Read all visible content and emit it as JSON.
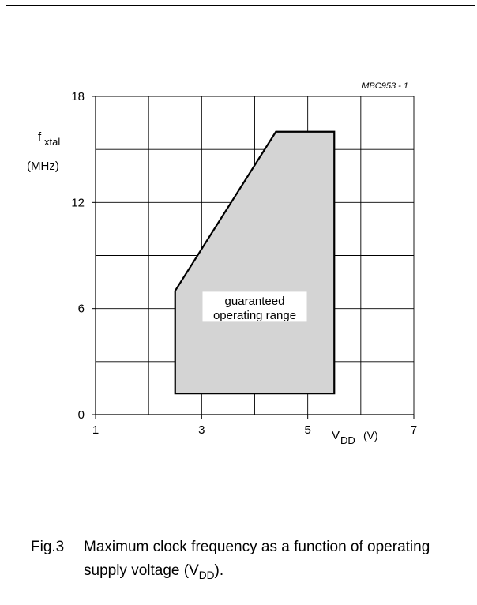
{
  "chart_data": {
    "type": "area",
    "code": "MBC953 - 1",
    "ylabel_main": "f",
    "ylabel_sub": "xtal",
    "ylabel_unit": "(MHz)",
    "xlabel_main": "V",
    "xlabel_sub": "DD",
    "xlabel_unit": "(V)",
    "xlim": [
      1,
      7
    ],
    "ylim": [
      0,
      18
    ],
    "x_ticks": [
      "1",
      "3",
      "5",
      "7"
    ],
    "y_ticks": [
      "0",
      "6",
      "12",
      "18"
    ],
    "grid": true,
    "region": {
      "label_line1": "guaranteed",
      "label_line2": "operating range",
      "points": [
        [
          2.5,
          1.2
        ],
        [
          2.5,
          7
        ],
        [
          4.4,
          16
        ],
        [
          5.5,
          16
        ],
        [
          5.5,
          1.2
        ]
      ]
    },
    "fill_color": "#d4d4d4",
    "line_color": "#000000"
  },
  "caption": {
    "fig_label": "Fig.3",
    "text_before": "Maximum clock frequency as a function of operating supply voltage (V",
    "text_sub": "DD",
    "text_after": ")."
  }
}
